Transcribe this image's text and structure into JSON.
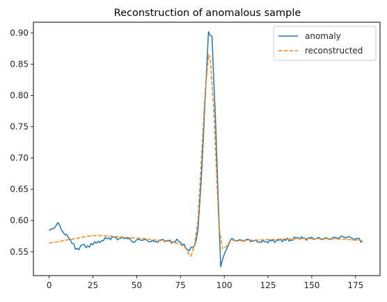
{
  "chart_data": {
    "type": "line",
    "title": "Reconstruction of anomalous sample",
    "xlabel": "",
    "ylabel": "",
    "xlim": [
      -9,
      189
    ],
    "ylim": [
      0.512,
      0.917
    ],
    "x_ticks": [
      0,
      25,
      50,
      75,
      100,
      125,
      150,
      175
    ],
    "y_ticks": [
      0.55,
      0.6,
      0.65,
      0.7,
      0.75,
      0.8,
      0.85,
      0.9
    ],
    "y_tick_labels": [
      "0.55",
      "0.60",
      "0.65",
      "0.70",
      "0.75",
      "0.80",
      "0.85",
      "0.90"
    ],
    "grid": false,
    "legend_position": "top-right",
    "series": [
      {
        "name": "anomaly",
        "color": "#1f77b4",
        "linestyle": "solid",
        "keypoints": [
          [
            0,
            0.584
          ],
          [
            2,
            0.586
          ],
          [
            4,
            0.593
          ],
          [
            5,
            0.596
          ],
          [
            7,
            0.586
          ],
          [
            9,
            0.578
          ],
          [
            11,
            0.573
          ],
          [
            12,
            0.57
          ],
          [
            14,
            0.561
          ],
          [
            15,
            0.554
          ],
          [
            17,
            0.556
          ],
          [
            19,
            0.561
          ],
          [
            23,
            0.558
          ],
          [
            26,
            0.566
          ],
          [
            28,
            0.564
          ],
          [
            31,
            0.57
          ],
          [
            35,
            0.572
          ],
          [
            37,
            0.573
          ],
          [
            40,
            0.571
          ],
          [
            44,
            0.573
          ],
          [
            48,
            0.566
          ],
          [
            52,
            0.57
          ],
          [
            56,
            0.568
          ],
          [
            60,
            0.566
          ],
          [
            65,
            0.569
          ],
          [
            70,
            0.566
          ],
          [
            74,
            0.568
          ],
          [
            77,
            0.56
          ],
          [
            79,
            0.553
          ],
          [
            83,
            0.558
          ],
          [
            85,
            0.585
          ],
          [
            87,
            0.67
          ],
          [
            89,
            0.79
          ],
          [
            91,
            0.899
          ],
          [
            93,
            0.895
          ],
          [
            95,
            0.76
          ],
          [
            97,
            0.6
          ],
          [
            98,
            0.528
          ],
          [
            100,
            0.545
          ],
          [
            102,
            0.56
          ],
          [
            104,
            0.57
          ],
          [
            108,
            0.568
          ],
          [
            113,
            0.569
          ],
          [
            118,
            0.567
          ],
          [
            122,
            0.566
          ],
          [
            126,
            0.567
          ],
          [
            130,
            0.568
          ],
          [
            134,
            0.569
          ],
          [
            138,
            0.569
          ],
          [
            142,
            0.573
          ],
          [
            146,
            0.571
          ],
          [
            150,
            0.572
          ],
          [
            155,
            0.571
          ],
          [
            160,
            0.571
          ],
          [
            165,
            0.573
          ],
          [
            170,
            0.574
          ],
          [
            174,
            0.571
          ],
          [
            177,
            0.57
          ],
          [
            179,
            0.566
          ]
        ],
        "noise": 0.003
      },
      {
        "name": "reconstructed",
        "color": "#ff7f0e",
        "linestyle": "dashed",
        "keypoints": [
          [
            0,
            0.564
          ],
          [
            5,
            0.566
          ],
          [
            10,
            0.569
          ],
          [
            15,
            0.571
          ],
          [
            20,
            0.574
          ],
          [
            25,
            0.576
          ],
          [
            30,
            0.576
          ],
          [
            35,
            0.575
          ],
          [
            40,
            0.574
          ],
          [
            45,
            0.573
          ],
          [
            50,
            0.572
          ],
          [
            55,
            0.571
          ],
          [
            60,
            0.569
          ],
          [
            65,
            0.568
          ],
          [
            70,
            0.566
          ],
          [
            75,
            0.562
          ],
          [
            78,
            0.556
          ],
          [
            80,
            0.545
          ],
          [
            81,
            0.543
          ],
          [
            83,
            0.56
          ],
          [
            85,
            0.6
          ],
          [
            87,
            0.7
          ],
          [
            89,
            0.8
          ],
          [
            91,
            0.865
          ],
          [
            92,
            0.86
          ],
          [
            94,
            0.78
          ],
          [
            96,
            0.65
          ],
          [
            97,
            0.59
          ],
          [
            99,
            0.555
          ],
          [
            101,
            0.558
          ],
          [
            103,
            0.566
          ],
          [
            105,
            0.568
          ],
          [
            110,
            0.568
          ],
          [
            120,
            0.569
          ],
          [
            130,
            0.57
          ],
          [
            140,
            0.571
          ],
          [
            150,
            0.571
          ],
          [
            160,
            0.571
          ],
          [
            170,
            0.57
          ],
          [
            179,
            0.568
          ]
        ],
        "noise": 0
      }
    ]
  }
}
